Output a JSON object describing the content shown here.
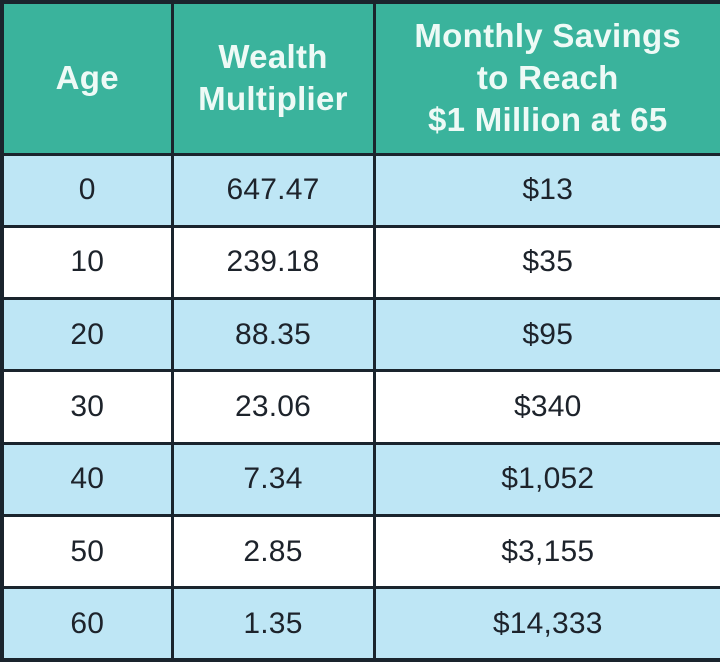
{
  "colors": {
    "header_bg": "#3ab39c",
    "header_text": "#eefaf6",
    "row_alt_bg": "#bee6f5",
    "row_bg": "#ffffff",
    "border": "#1a242d",
    "cell_text": "#1d232b"
  },
  "table": {
    "headers": [
      {
        "label": "Age",
        "lines": [
          "Age"
        ]
      },
      {
        "label": "Wealth Multiplier",
        "lines": [
          "Wealth",
          "Multiplier"
        ]
      },
      {
        "label": "Monthly Savings to Reach $1 Million at 65",
        "lines": [
          "Monthly Savings",
          "to Reach",
          "$1 Million at 65"
        ]
      }
    ],
    "rows": [
      {
        "cells": [
          "0",
          "647.47",
          "$13"
        ]
      },
      {
        "cells": [
          "10",
          "239.18",
          "$35"
        ]
      },
      {
        "cells": [
          "20",
          "88.35",
          "$95"
        ]
      },
      {
        "cells": [
          "30",
          "23.06",
          "$340"
        ]
      },
      {
        "cells": [
          "40",
          "7.34",
          "$1,052"
        ]
      },
      {
        "cells": [
          "50",
          "2.85",
          "$3,155"
        ]
      },
      {
        "cells": [
          "60",
          "1.35",
          "$14,333"
        ]
      }
    ]
  },
  "chart_data": {
    "type": "table",
    "title": "",
    "columns": [
      "Age",
      "Wealth Multiplier",
      "Monthly Savings to Reach $1 Million at 65"
    ],
    "rows": [
      [
        0,
        647.47,
        "$13"
      ],
      [
        10,
        239.18,
        "$35"
      ],
      [
        20,
        88.35,
        "$95"
      ],
      [
        30,
        23.06,
        "$340"
      ],
      [
        40,
        7.34,
        "$1,052"
      ],
      [
        50,
        2.85,
        "$3,155"
      ],
      [
        60,
        1.35,
        "$14,333"
      ]
    ],
    "layout": {
      "header_background": "#3ab39c",
      "alternating_row_colors": [
        "#bee6f5",
        "#ffffff"
      ],
      "grid": true
    }
  }
}
